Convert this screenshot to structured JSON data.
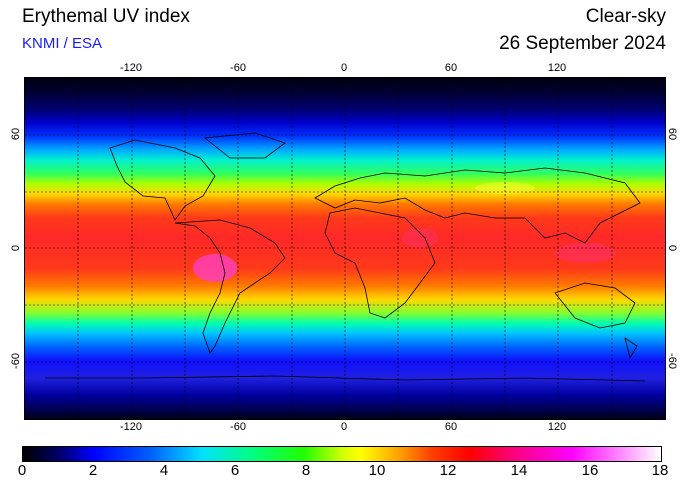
{
  "header": {
    "title": "Erythemal UV index",
    "credit": "KNMI / ESA",
    "mode": "Clear-sky",
    "date": "26 September 2024"
  },
  "map": {
    "lon_ticks": [
      "-120",
      "-60",
      "0",
      "60",
      "120"
    ],
    "lat_ticks": [
      "60",
      "0",
      "-60"
    ],
    "lon_range": [
      -180,
      180
    ],
    "lat_range": [
      -90,
      90
    ],
    "gridlines": "dashed, every 30 degrees"
  },
  "colorbar": {
    "labels": [
      "0",
      "2",
      "4",
      "6",
      "8",
      "10",
      "12",
      "14",
      "16",
      "18"
    ],
    "min": 0,
    "max": 18
  }
}
